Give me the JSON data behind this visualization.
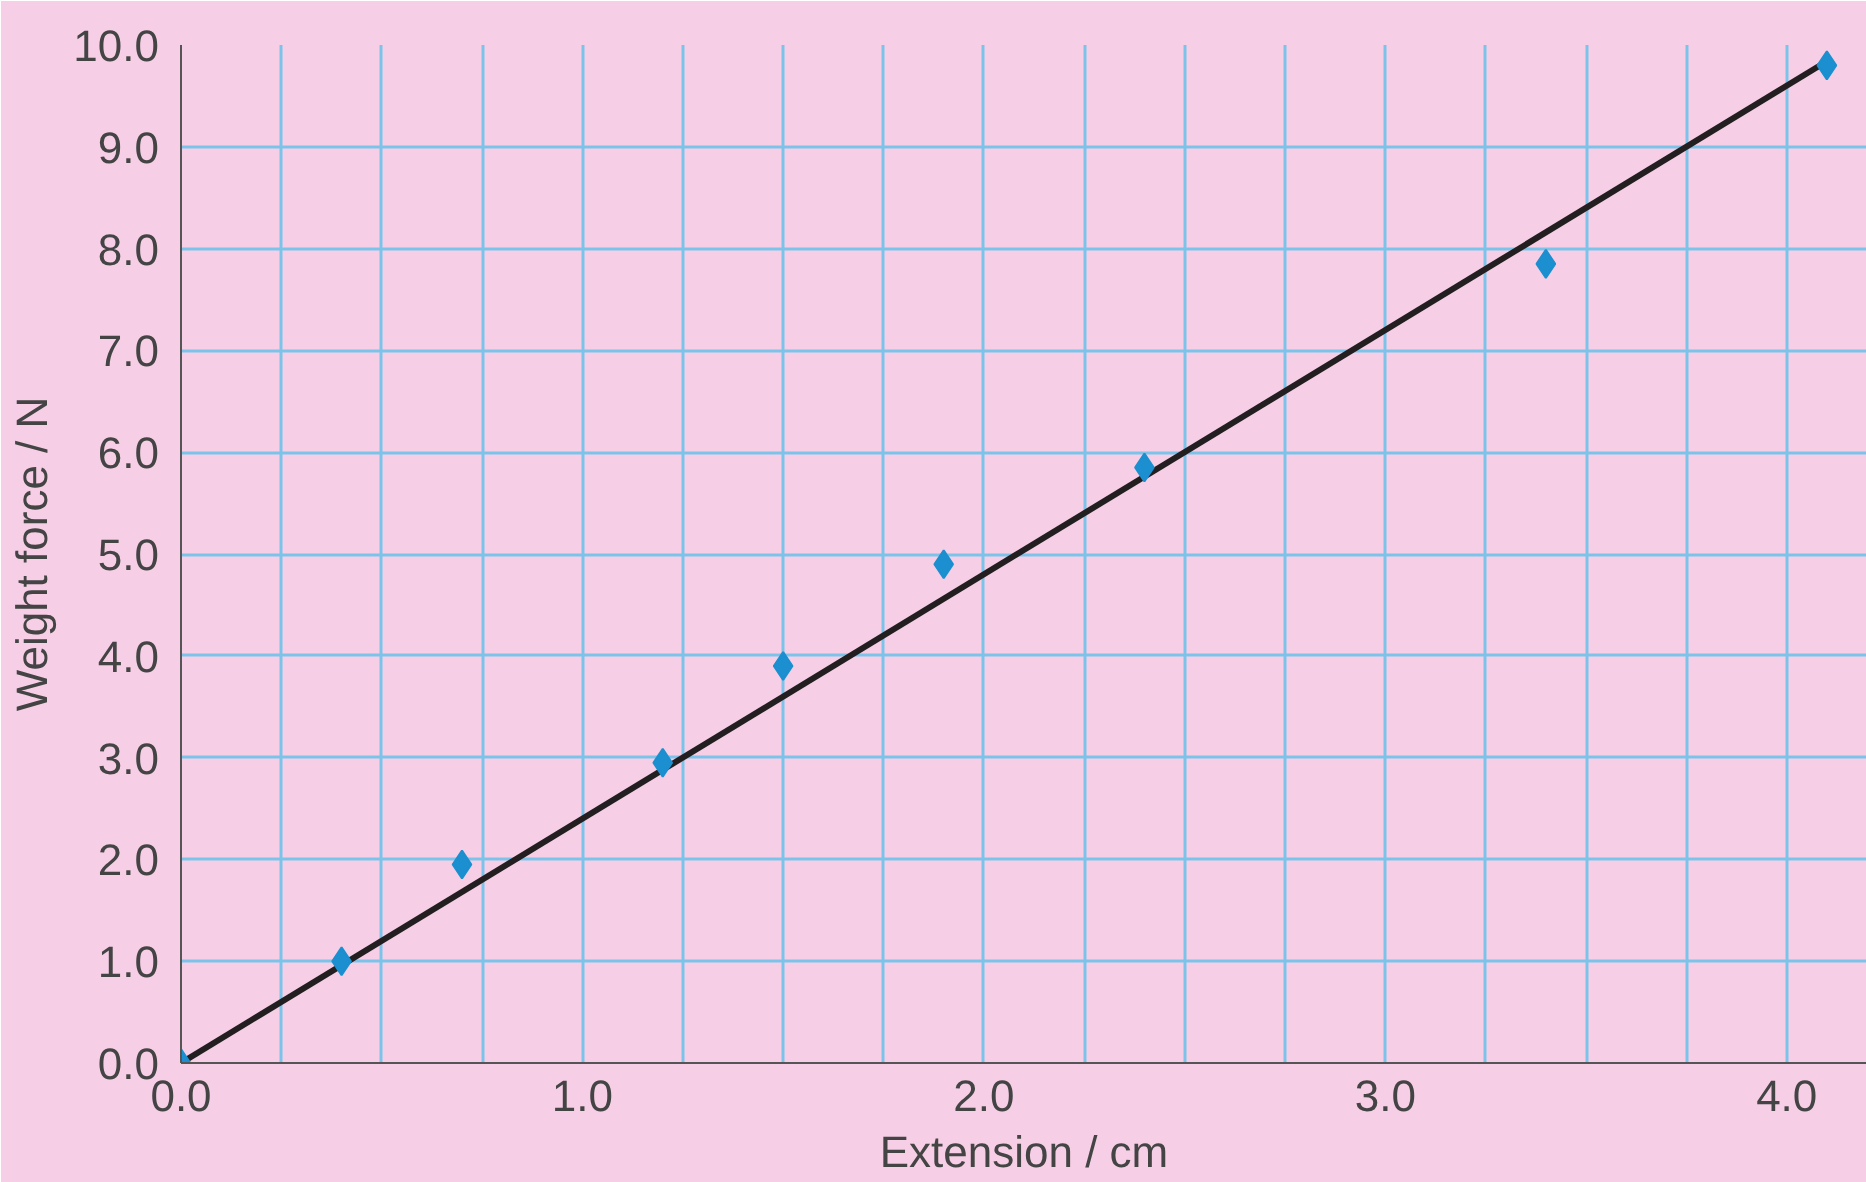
{
  "chart_data": {
    "type": "scatter",
    "xlabel": "Extension / cm",
    "ylabel": "Weight force / N",
    "x": [
      0,
      0.4,
      0.7,
      1.2,
      1.5,
      1.9,
      2.4,
      3.4,
      4.1
    ],
    "series": [
      {
        "color": "#1b8fcf",
        "marker": "diamond",
        "values": [
          0,
          1.0,
          1.95,
          2.95,
          3.9,
          4.9,
          5.85,
          7.85,
          9.8
        ]
      },
      {
        "type": "line",
        "color": "#231f20",
        "x": [
          0,
          4.1
        ],
        "values": [
          0,
          9.84
        ],
        "marker": "none",
        "line_style": "solid"
      }
    ],
    "xlim": [
      0,
      4.2
    ],
    "ylim": [
      0,
      10.0
    ],
    "xticks": [
      {
        "value": 0,
        "label": "0.0"
      },
      {
        "value": 0.25,
        "label": null
      },
      {
        "value": 0.5,
        "label": null
      },
      {
        "value": 0.75,
        "label": null
      },
      {
        "value": 1,
        "label": "1.0"
      },
      {
        "value": 1.25,
        "label": null
      },
      {
        "value": 1.5,
        "label": null
      },
      {
        "value": 1.75,
        "label": null
      },
      {
        "value": 2,
        "label": "2.0"
      },
      {
        "value": 2.25,
        "label": null
      },
      {
        "value": 2.5,
        "label": null
      },
      {
        "value": 2.75,
        "label": null
      },
      {
        "value": 3,
        "label": "3.0"
      },
      {
        "value": 3.25,
        "label": null
      },
      {
        "value": 3.5,
        "label": null
      },
      {
        "value": 3.75,
        "label": null
      },
      {
        "value": 4,
        "label": "4.0"
      }
    ],
    "yticks": [
      {
        "value": 0,
        "label": "0.0"
      },
      {
        "value": 1,
        "label": "1.0"
      },
      {
        "value": 2,
        "label": "2.0"
      },
      {
        "value": 3,
        "label": "3.0"
      },
      {
        "value": 4,
        "label": "4.0"
      },
      {
        "value": 5,
        "label": "5.0"
      },
      {
        "value": 6,
        "label": "6.0"
      },
      {
        "value": 7,
        "label": "7.0"
      },
      {
        "value": 8,
        "label": "8.0"
      },
      {
        "value": 9,
        "label": "9.0"
      },
      {
        "value": 10,
        "label": "10.0"
      }
    ],
    "grid": true
  }
}
